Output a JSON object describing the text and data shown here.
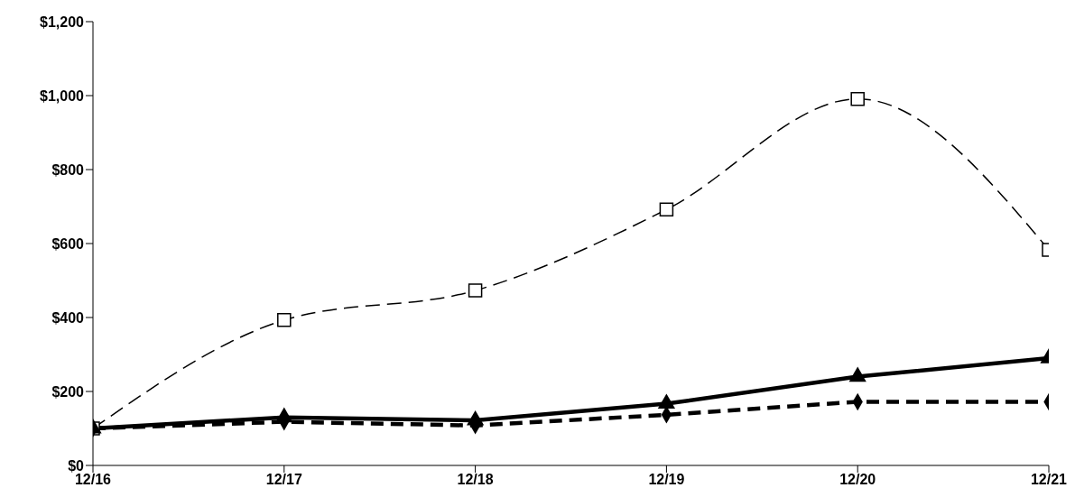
{
  "chart_data": {
    "type": "line",
    "categories": [
      "12/16",
      "12/17",
      "12/18",
      "12/19",
      "12/20",
      "12/21"
    ],
    "series": [
      {
        "color": "#000000",
        "marker": "square",
        "line_style": "dashed",
        "values": [
          100,
          393,
          473,
          692,
          991,
          583
        ]
      },
      {
        "color": "#000000",
        "marker": "triangle",
        "line_style": "solid",
        "values": [
          100,
          130,
          122,
          167,
          240,
          290
        ]
      },
      {
        "color": "#000000",
        "marker": "diamond",
        "line_style": "dashed",
        "values": [
          100,
          118,
          108,
          137,
          172,
          172
        ]
      }
    ],
    "ylim": [
      0,
      1200
    ],
    "yticks": [
      {
        "value": 0,
        "label": "$0"
      },
      {
        "value": 200,
        "label": "$200"
      },
      {
        "value": 400,
        "label": "$400"
      },
      {
        "value": 600,
        "label": "$600"
      },
      {
        "value": 800,
        "label": "$800"
      },
      {
        "value": 1000,
        "label": "$1,000"
      },
      {
        "value": 1200,
        "label": "$1,200"
      }
    ],
    "grid": false,
    "legend": false
  }
}
